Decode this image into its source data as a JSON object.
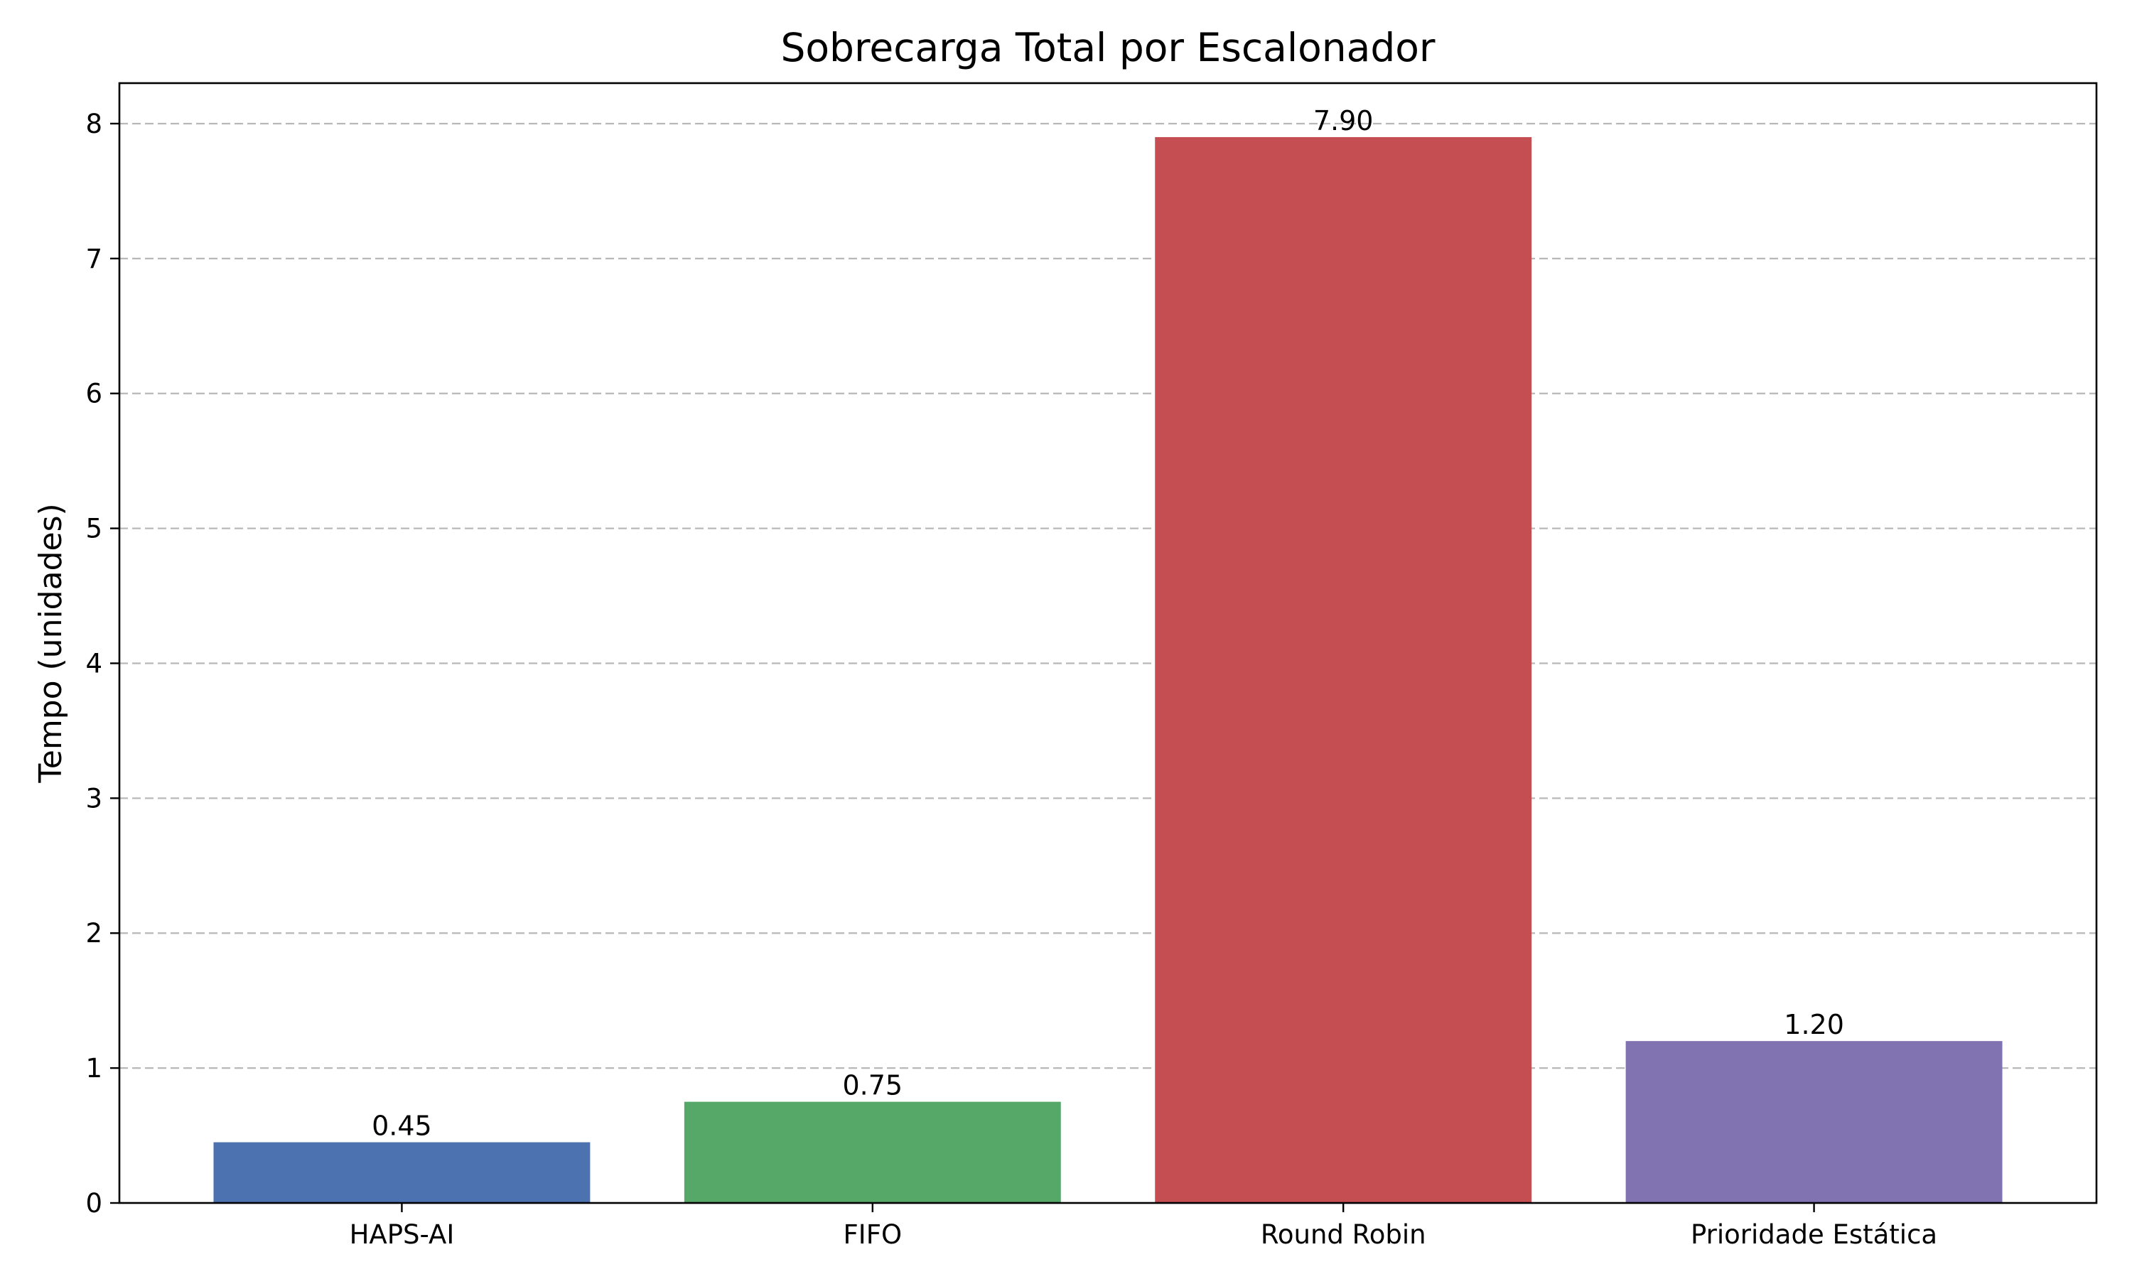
{
  "chart_data": {
    "type": "bar",
    "title": "Sobrecarga Total por Escalonador",
    "xlabel": "",
    "ylabel": "Tempo (unidades)",
    "categories": [
      "HAPS-AI",
      "FIFO",
      "Round Robin",
      "Prioridade Estática"
    ],
    "values": [
      0.45,
      0.75,
      7.9,
      1.2
    ],
    "value_labels": [
      "0.45",
      "0.75",
      "7.90",
      "1.20"
    ],
    "colors": [
      "#4c72b0",
      "#55a868",
      "#c44e52",
      "#8172b2"
    ],
    "ylim": [
      0,
      8.3
    ],
    "yticks": [
      0,
      1,
      2,
      3,
      4,
      5,
      6,
      7,
      8
    ],
    "grid": "y-dashed",
    "legend": "none"
  }
}
